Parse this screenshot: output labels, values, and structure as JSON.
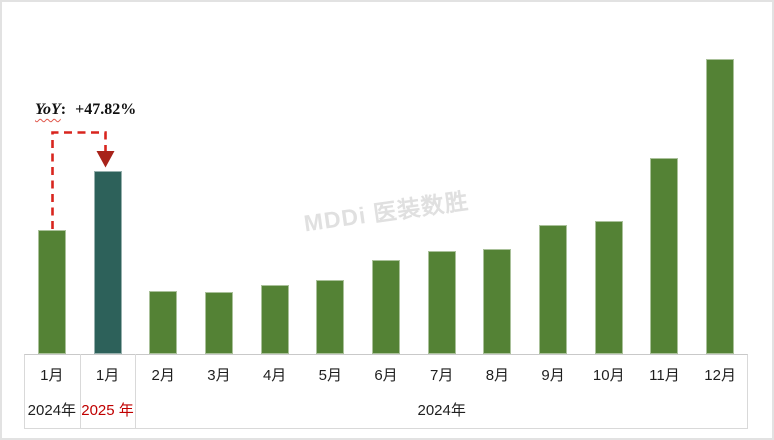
{
  "chart": {
    "watermark": "MDDi 医装数胜",
    "annotation": {
      "term": "YoY",
      "separator": ":",
      "value": "+47.82%"
    },
    "x_axis": {
      "months": [
        "1月",
        "1月",
        "2月",
        "3月",
        "4月",
        "5月",
        "6月",
        "7月",
        "8月",
        "9月",
        "10月",
        "11月",
        "12月"
      ],
      "year_groups": [
        {
          "label": "2024年",
          "start": 0,
          "end": 0,
          "color": "#1f1f1f"
        },
        {
          "label": "2025 年",
          "start": 1,
          "end": 1,
          "color": "#C00000"
        },
        {
          "label": "2024年",
          "start": 2,
          "end": 12,
          "color": "#1f1f1f"
        }
      ]
    }
  },
  "chart_data": {
    "type": "bar",
    "title": "",
    "categories": [
      "1月",
      "1月",
      "2月",
      "3月",
      "4月",
      "5月",
      "6月",
      "7月",
      "8月",
      "9月",
      "10月",
      "11月",
      "12月"
    ],
    "category_year_groups": [
      {
        "label": "2024年",
        "start": 0,
        "end": 0
      },
      {
        "label": "2025 年",
        "start": 1,
        "end": 1
      },
      {
        "label": "2024年",
        "start": 2,
        "end": 12
      }
    ],
    "values": [
      100,
      147.8,
      50.8,
      50.0,
      55.6,
      59.7,
      75.8,
      83.1,
      84.7,
      104.0,
      107.3,
      158.1,
      237.9
    ],
    "values_note": "relative index estimated from bar heights; Jan-2024 bar = 100; no numeric value axis is shown in the chart",
    "ylim": [
      0,
      245
    ],
    "value_axis_visible": false,
    "grid": "off",
    "legend": "none",
    "highlight_index": 1,
    "annotation_text": "YoY: +47.82%"
  },
  "colors": {
    "bar_green": "#548235",
    "bar_teal": "#2D615A",
    "dash_red": "#D8251E",
    "arrow_red": "#A8231A",
    "year_2025_red": "#C00000",
    "axis_text": "#1f1f1f",
    "watermark_gray": "#E0E0E0",
    "border_gray": "#D9D9D9"
  }
}
